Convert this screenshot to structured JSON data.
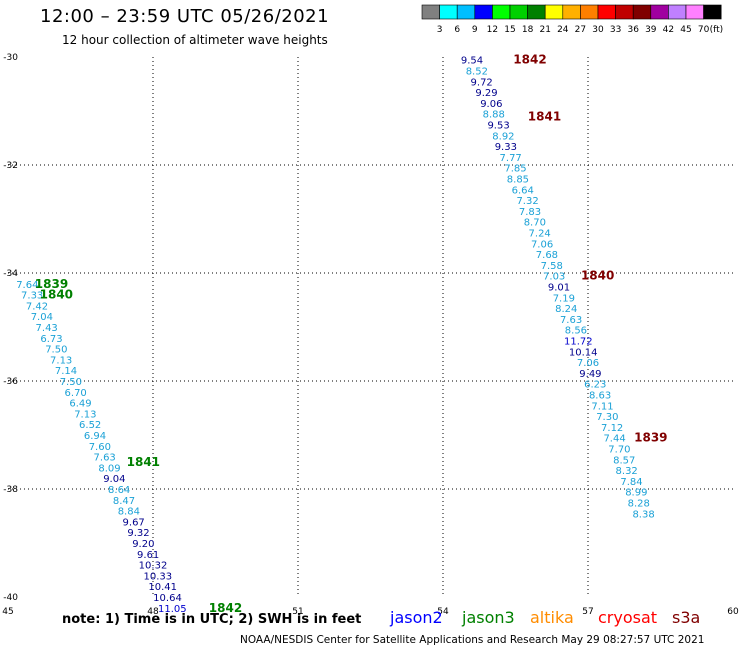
{
  "header": {
    "title": "12:00 – 23:59 UTC 05/26/2021",
    "subtitle": "12 hour collection of altimeter wave heights"
  },
  "colorbar": {
    "ticks": [
      "3",
      "6",
      "9",
      "12",
      "15",
      "18",
      "21",
      "24",
      "27",
      "30",
      "33",
      "36",
      "39",
      "42",
      "45",
      "70"
    ],
    "unit": "(ft)",
    "colors": [
      "#808080",
      "#00ffff",
      "#00bfff",
      "#0000ff",
      "#00ff00",
      "#00d000",
      "#008000",
      "#ffff00",
      "#ffb000",
      "#ff7f00",
      "#ff0000",
      "#c00000",
      "#800000",
      "#a000a0",
      "#c080ff",
      "#ff80ff",
      "#000000"
    ]
  },
  "footer": {
    "note": "note:  1) Time is in UTC;  2) SWH is in feet",
    "credit": "NOAA/NESDIS Center for Satellite Applications and Research     May 29 08:27:57 UTC 2021",
    "satellites": [
      {
        "name": "jason2",
        "color": "#0000ff"
      },
      {
        "name": "jason3",
        "color": "#008000"
      },
      {
        "name": "altika",
        "color": "#ff8c00"
      },
      {
        "name": "cryosat",
        "color": "#ff0000"
      },
      {
        "name": "s3a",
        "color": "#800000"
      }
    ]
  },
  "chart_data": {
    "type": "scatter",
    "title": "12:00 – 23:59 UTC 05/26/2021",
    "xlim": [
      45,
      60
    ],
    "ylim": [
      -40,
      -30
    ],
    "xticks": [
      45,
      48,
      51,
      54,
      57,
      60
    ],
    "yticks": [
      -30,
      -32,
      -34,
      -36,
      -38,
      -40
    ],
    "grid": true,
    "tracks": [
      {
        "satellite": "s3a",
        "color": "#800000",
        "points": [
          {
            "x": 54.6,
            "y": -30.05,
            "v": "9.54"
          },
          {
            "x": 54.7,
            "y": -30.25,
            "v": "8.52"
          },
          {
            "x": 54.8,
            "y": -30.45,
            "v": "9.72"
          },
          {
            "x": 54.9,
            "y": -30.65,
            "v": "9.29"
          },
          {
            "x": 55.0,
            "y": -30.85,
            "v": "9.06"
          },
          {
            "x": 55.05,
            "y": -31.05,
            "v": "8.88"
          },
          {
            "x": 55.15,
            "y": -31.25,
            "v": "9.53"
          },
          {
            "x": 55.25,
            "y": -31.45,
            "v": "8.92"
          },
          {
            "x": 55.3,
            "y": -31.65,
            "v": "9.33"
          },
          {
            "x": 55.4,
            "y": -31.85,
            "v": "7.77"
          },
          {
            "x": 55.5,
            "y": -32.05,
            "v": "7.85"
          },
          {
            "x": 55.55,
            "y": -32.25,
            "v": "8.85"
          },
          {
            "x": 55.65,
            "y": -32.45,
            "v": "6.64"
          },
          {
            "x": 55.75,
            "y": -32.65,
            "v": "7.32"
          },
          {
            "x": 55.8,
            "y": -32.85,
            "v": "7.83"
          },
          {
            "x": 55.9,
            "y": -33.05,
            "v": "8.70"
          },
          {
            "x": 56.0,
            "y": -33.25,
            "v": "7.24"
          },
          {
            "x": 56.05,
            "y": -33.45,
            "v": "7.06"
          },
          {
            "x": 56.15,
            "y": -33.65,
            "v": "7.68"
          },
          {
            "x": 56.25,
            "y": -33.85,
            "v": "7.58"
          },
          {
            "x": 56.3,
            "y": -34.05,
            "v": "7.03"
          },
          {
            "x": 56.4,
            "y": -34.25,
            "v": "9.01"
          },
          {
            "x": 56.5,
            "y": -34.45,
            "v": "7.19"
          },
          {
            "x": 56.55,
            "y": -34.65,
            "v": "8.24"
          },
          {
            "x": 56.65,
            "y": -34.85,
            "v": "7.63"
          },
          {
            "x": 56.75,
            "y": -35.05,
            "v": "8.56"
          },
          {
            "x": 56.8,
            "y": -35.25,
            "v": "11.72"
          },
          {
            "x": 56.9,
            "y": -35.45,
            "v": "10.14"
          },
          {
            "x": 57.0,
            "y": -35.65,
            "v": "7.06"
          },
          {
            "x": 57.05,
            "y": -35.85,
            "v": "9.49"
          },
          {
            "x": 57.15,
            "y": -36.05,
            "v": "6.23"
          },
          {
            "x": 57.25,
            "y": -36.25,
            "v": "8.63"
          },
          {
            "x": 57.3,
            "y": -36.45,
            "v": "7.11"
          },
          {
            "x": 57.4,
            "y": -36.65,
            "v": "7.30"
          },
          {
            "x": 57.5,
            "y": -36.85,
            "v": "7.12"
          },
          {
            "x": 57.55,
            "y": -37.05,
            "v": "7.44"
          },
          {
            "x": 57.65,
            "y": -37.25,
            "v": "7.70"
          },
          {
            "x": 57.75,
            "y": -37.45,
            "v": "8.57"
          },
          {
            "x": 57.8,
            "y": -37.65,
            "v": "8.32"
          },
          {
            "x": 57.9,
            "y": -37.85,
            "v": "7.84"
          },
          {
            "x": 58.0,
            "y": -38.05,
            "v": "8.99"
          },
          {
            "x": 58.05,
            "y": -38.25,
            "v": "8.28"
          },
          {
            "x": 58.15,
            "y": -38.45,
            "v": "8.38"
          }
        ],
        "time_labels": [
          {
            "x": 55.8,
            "y": -30.05,
            "t": "1842"
          },
          {
            "x": 56.1,
            "y": -31.1,
            "t": "1841"
          },
          {
            "x": 57.2,
            "y": -34.05,
            "t": "1840"
          },
          {
            "x": 58.3,
            "y": -37.05,
            "t": "1839"
          }
        ]
      },
      {
        "satellite": "jason3",
        "color": "#008000",
        "points": [
          {
            "x": 45.4,
            "y": -34.2,
            "v": "7.64"
          },
          {
            "x": 45.5,
            "y": -34.4,
            "v": "7.33"
          },
          {
            "x": 45.6,
            "y": -34.6,
            "v": "7.42"
          },
          {
            "x": 45.7,
            "y": -34.8,
            "v": "7.04"
          },
          {
            "x": 45.8,
            "y": -35.0,
            "v": "7.43"
          },
          {
            "x": 45.9,
            "y": -35.2,
            "v": "6.73"
          },
          {
            "x": 46.0,
            "y": -35.4,
            "v": "7.50"
          },
          {
            "x": 46.1,
            "y": -35.6,
            "v": "7.13"
          },
          {
            "x": 46.2,
            "y": -35.8,
            "v": "7.14"
          },
          {
            "x": 46.3,
            "y": -36.0,
            "v": "7.50"
          },
          {
            "x": 46.4,
            "y": -36.2,
            "v": "6.70"
          },
          {
            "x": 46.5,
            "y": -36.4,
            "v": "6.49"
          },
          {
            "x": 46.6,
            "y": -36.6,
            "v": "7.13"
          },
          {
            "x": 46.7,
            "y": -36.8,
            "v": "6.52"
          },
          {
            "x": 46.8,
            "y": -37.0,
            "v": "6.94"
          },
          {
            "x": 46.9,
            "y": -37.2,
            "v": "7.60"
          },
          {
            "x": 47.0,
            "y": -37.4,
            "v": "7.63"
          },
          {
            "x": 47.1,
            "y": -37.6,
            "v": "8.09"
          },
          {
            "x": 47.2,
            "y": -37.8,
            "v": "9.04"
          },
          {
            "x": 47.3,
            "y": -38.0,
            "v": "8.64"
          },
          {
            "x": 47.4,
            "y": -38.2,
            "v": "8.47"
          },
          {
            "x": 47.5,
            "y": -38.4,
            "v": "8.84"
          },
          {
            "x": 47.6,
            "y": -38.6,
            "v": "9.67"
          },
          {
            "x": 47.7,
            "y": -38.8,
            "v": "9.32"
          },
          {
            "x": 47.8,
            "y": -39.0,
            "v": "9.20"
          },
          {
            "x": 47.9,
            "y": -39.2,
            "v": "9.61"
          },
          {
            "x": 48.0,
            "y": -39.4,
            "v": "10.32"
          },
          {
            "x": 48.1,
            "y": -39.6,
            "v": "10.33"
          },
          {
            "x": 48.2,
            "y": -39.8,
            "v": "10.41"
          },
          {
            "x": 48.3,
            "y": -40.0,
            "v": "10.64"
          },
          {
            "x": 48.4,
            "y": -40.2,
            "v": "11.05"
          }
        ],
        "time_labels": [
          {
            "x": 45.9,
            "y": -34.2,
            "t": "1839"
          },
          {
            "x": 46.0,
            "y": -34.4,
            "t": "1840"
          },
          {
            "x": 47.8,
            "y": -37.5,
            "t": "1841"
          },
          {
            "x": 49.5,
            "y": -40.2,
            "t": "1842"
          }
        ]
      }
    ]
  }
}
